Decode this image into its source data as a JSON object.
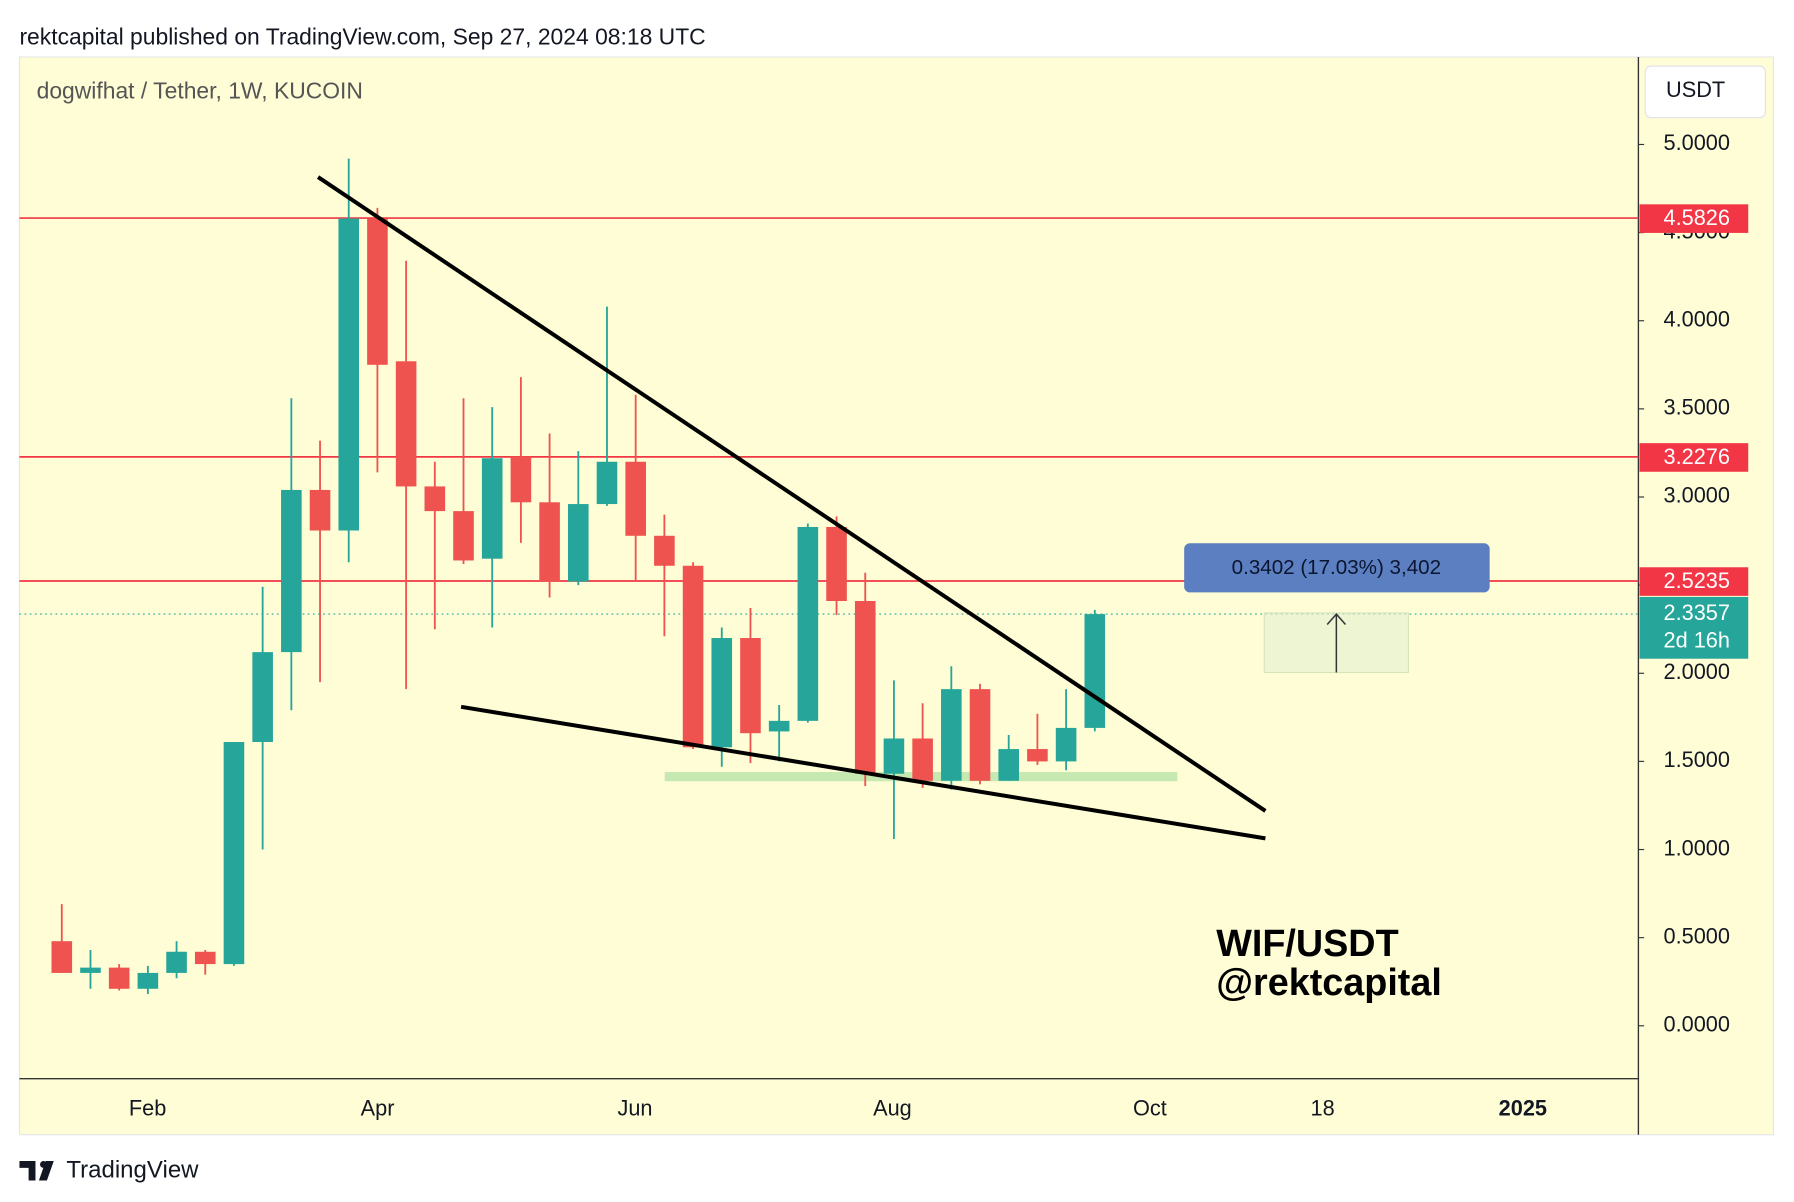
{
  "chart_data": {
    "type": "candlestick",
    "header": "rektcapital published on TradingView.com, Sep 27, 2024 08:18 UTC",
    "title": "dogwifhat / Tether, 1W, KUCOIN",
    "currency": "USDT",
    "brand": "TradingView",
    "annotations": [
      "WIF/USDT",
      "@rektcapital"
    ],
    "measure_label": "0.3402 (17.03%) 3,402",
    "x_tick_labels": [
      "Feb",
      "Apr",
      "Jun",
      "Aug",
      "Oct",
      "18",
      "2025"
    ],
    "open": [
      0.48,
      0.3,
      0.33,
      0.21,
      0.3,
      0.42,
      0.35,
      1.61,
      2.12,
      3.04,
      2.81,
      4.58,
      3.77,
      3.06,
      2.92,
      2.65,
      3.23,
      2.97,
      2.52,
      2.96,
      3.2,
      2.78,
      2.61,
      1.58,
      2.2,
      1.67,
      1.73,
      2.83,
      2.41,
      1.43,
      1.63,
      1.39,
      1.91,
      1.39,
      1.57,
      1.5,
      1.69
    ],
    "high": [
      0.69,
      0.43,
      0.35,
      0.34,
      0.48,
      0.43,
      1.61,
      2.49,
      3.56,
      3.32,
      4.92,
      4.64,
      4.34,
      3.2,
      3.56,
      3.51,
      3.68,
      3.36,
      3.26,
      4.08,
      3.58,
      2.9,
      2.63,
      2.26,
      2.37,
      1.82,
      2.85,
      2.89,
      2.57,
      1.96,
      1.83,
      2.04,
      1.94,
      1.65,
      1.77,
      1.91,
      2.36
    ],
    "low": [
      0.3,
      0.21,
      0.2,
      0.18,
      0.27,
      0.29,
      0.34,
      1.0,
      1.79,
      1.95,
      2.63,
      3.14,
      1.91,
      2.25,
      2.62,
      2.26,
      2.74,
      2.43,
      2.5,
      2.95,
      2.52,
      2.21,
      1.57,
      1.47,
      1.49,
      1.5,
      1.72,
      2.33,
      1.36,
      1.06,
      1.35,
      1.34,
      1.37,
      1.39,
      1.48,
      1.45,
      1.67
    ],
    "close": [
      0.3,
      0.33,
      0.21,
      0.3,
      0.42,
      0.35,
      1.61,
      2.12,
      3.04,
      2.81,
      4.58,
      3.75,
      3.06,
      2.92,
      2.64,
      3.22,
      2.97,
      2.52,
      2.96,
      3.2,
      2.78,
      2.61,
      1.58,
      2.2,
      1.66,
      1.73,
      2.83,
      2.41,
      1.43,
      1.63,
      1.39,
      1.91,
      1.39,
      1.57,
      1.5,
      1.69,
      2.3357
    ],
    "up_color": "#26a69a",
    "down_color": "#ef5350",
    "levels": [
      4.5826,
      3.2276,
      2.5235
    ],
    "level_color": "#f23645",
    "last_price": 2.3357,
    "countdown": "2d 16h",
    "ylim": [
      -0.3,
      5.49
    ],
    "yticks": [
      {
        "value": 0,
        "label": "0.0000"
      },
      {
        "value": 0.5,
        "label": "0.5000"
      },
      {
        "value": 1,
        "label": "1.0000"
      },
      {
        "value": 1.5,
        "label": "1.5000"
      },
      {
        "value": 2,
        "label": "2.0000"
      },
      {
        "value": 2.5,
        "label": "2.5000"
      },
      {
        "value": 3,
        "label": "3.0000"
      },
      {
        "value": 3.5,
        "label": "3.5000"
      },
      {
        "value": 4,
        "label": "4.0000"
      },
      {
        "value": 4.5,
        "label": "4.5000"
      },
      {
        "value": 5,
        "label": "5.0000"
      }
    ]
  }
}
